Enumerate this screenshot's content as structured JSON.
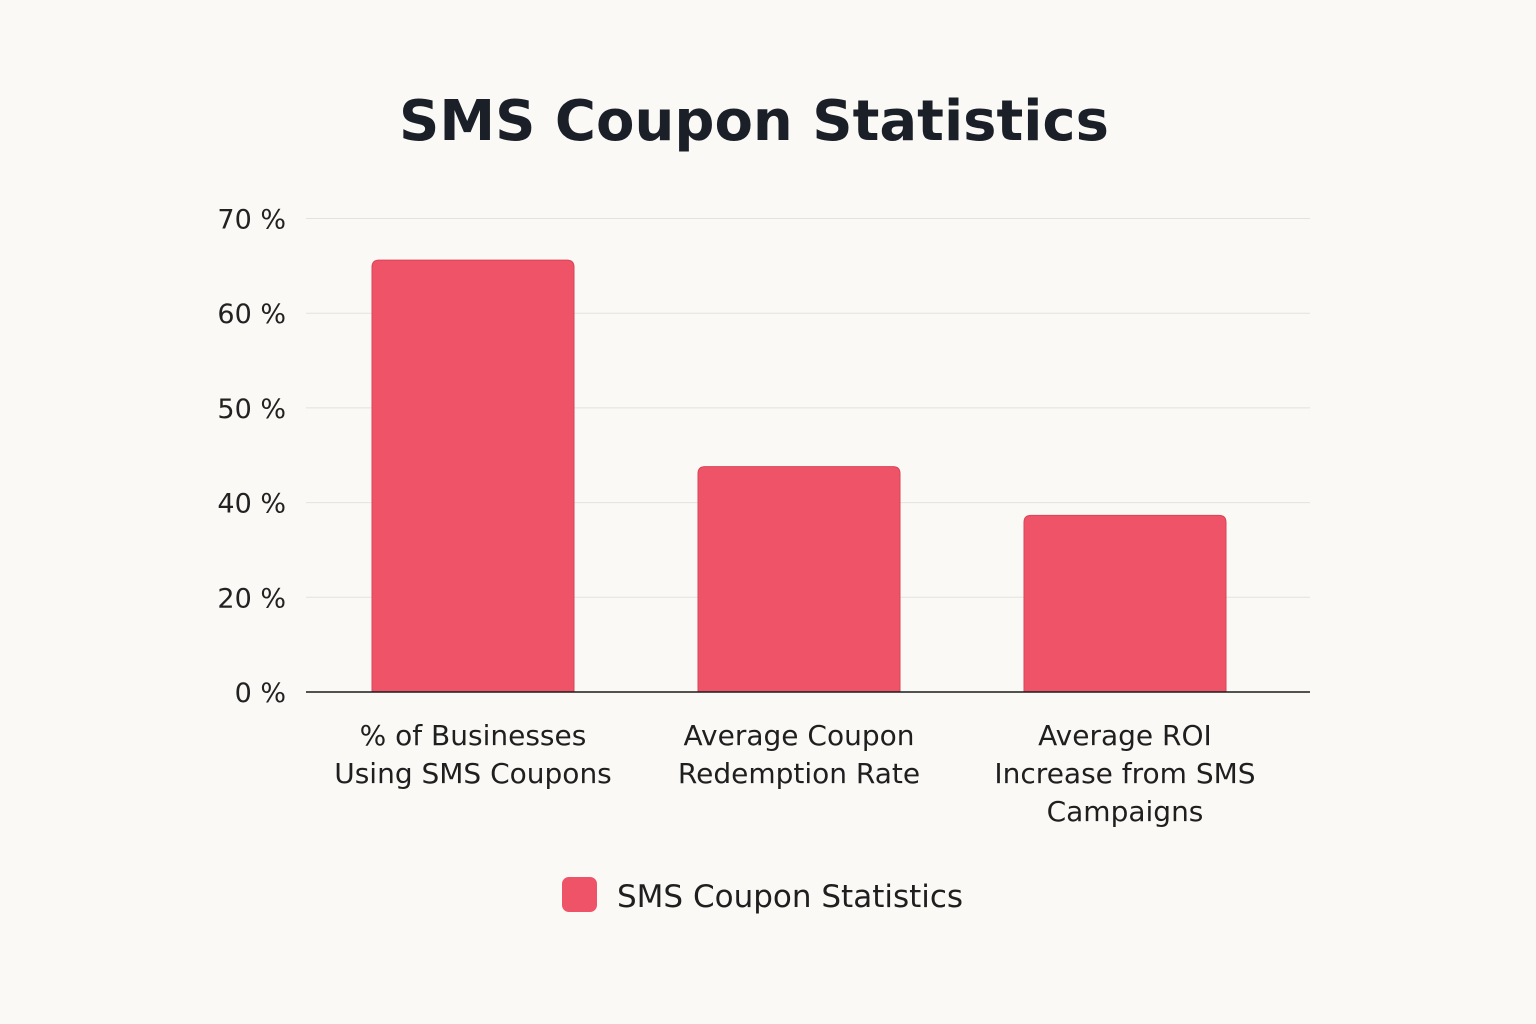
{
  "chart_data": {
    "type": "bar",
    "title": "SMS Coupon Statistics",
    "xlabel": "",
    "ylabel": "",
    "y_ticks": [
      "0 %",
      "20 %",
      "40 %",
      "50 %",
      "60 %",
      "70 %"
    ],
    "ylim": [
      0,
      70
    ],
    "grid": true,
    "legend_position": "bottom",
    "categories": [
      [
        "% of Businesses",
        "Using SMS Coupons"
      ],
      [
        "Average Coupon",
        "Redemption Rate"
      ],
      [
        "Average ROI",
        "Increase from SMS",
        "Campaigns"
      ]
    ],
    "series": [
      {
        "name": "SMS Coupon Statistics",
        "color": "#ef5367",
        "values": [
          65.6,
          43.8,
          37.3
        ]
      }
    ]
  }
}
